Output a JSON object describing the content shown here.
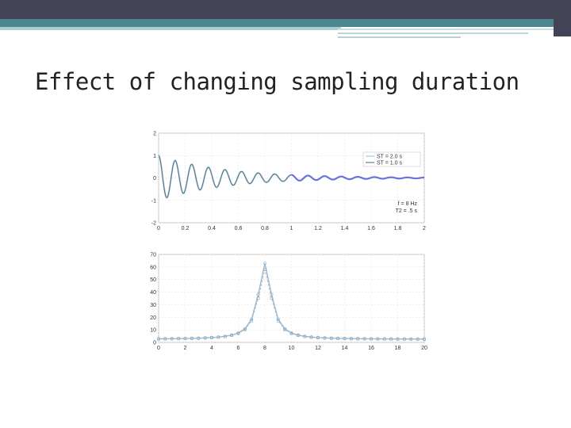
{
  "slide": {
    "title": "Effect of changing sampling duration"
  },
  "colors": {
    "series_st2": "#b9d2e0",
    "series_st1": "#4a6a7a",
    "tail_st2": "#6a74d8",
    "peak_series": "#9fb9cf"
  },
  "chart_data": [
    {
      "type": "line",
      "title": "",
      "xlabel": "",
      "ylabel": "",
      "xlim": [
        0,
        2
      ],
      "ylim": [
        -2,
        2
      ],
      "x_ticks": [
        "0",
        "0.2",
        "0.4",
        "0.6",
        "0.8",
        "1",
        "1.2",
        "1.4",
        "1.6",
        "1.8",
        "2"
      ],
      "y_ticks": [
        "-2",
        "-1",
        "0",
        "1",
        "2"
      ],
      "legend_position": "top-right",
      "series": [
        {
          "name": "ST = 2.0 s",
          "duration": 2.0,
          "frequency_hz": 8,
          "decay_time_s": 0.5
        },
        {
          "name": "ST = 1.0 s",
          "duration": 1.0,
          "frequency_hz": 8,
          "decay_time_s": 0.5
        }
      ],
      "annotation": [
        "f = 8 Hz",
        "T2 = .5 s"
      ]
    },
    {
      "type": "line",
      "title": "",
      "xlabel": "",
      "ylabel": "",
      "xlim": [
        0,
        20
      ],
      "ylim": [
        0,
        70
      ],
      "x_ticks": [
        "0",
        "2",
        "4",
        "6",
        "8",
        "10",
        "12",
        "14",
        "16",
        "18",
        "20"
      ],
      "y_ticks": [
        "0",
        "10",
        "20",
        "30",
        "40",
        "50",
        "60",
        "70"
      ],
      "series": [
        {
          "name": "ST = 2.0 s",
          "peak_x": 8,
          "peak_y": 63
        },
        {
          "name": "ST = 1.0 s",
          "peak_x": 8,
          "peak_y": 58
        }
      ]
    }
  ]
}
